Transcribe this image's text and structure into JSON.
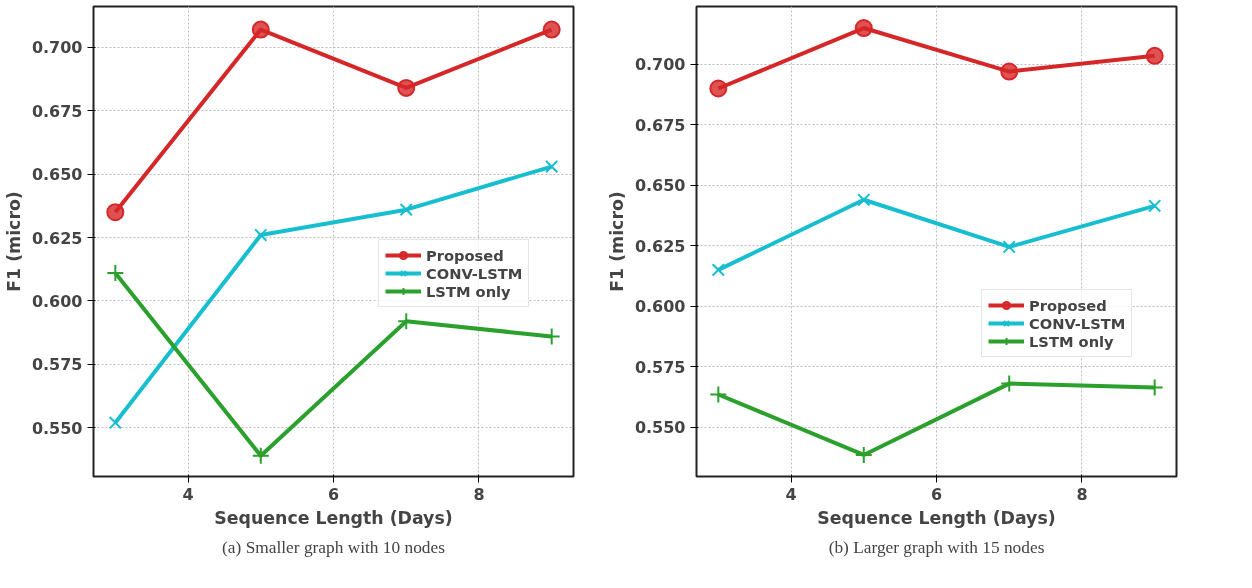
{
  "chart_data": [
    {
      "type": "line",
      "xlabel": "Sequence Length (Days)",
      "ylabel": "F1 (micro)",
      "x": [
        3,
        5,
        7,
        9
      ],
      "xlim": [
        2.7,
        9.3
      ],
      "ylim": [
        0.5308,
        0.7161
      ],
      "xticks": [
        4,
        6,
        8
      ],
      "yticks": [
        {
          "value": 0.55,
          "label": "0.550"
        },
        {
          "value": 0.575,
          "label": "0.575"
        },
        {
          "value": 0.6,
          "label": "0.600"
        },
        {
          "value": 0.625,
          "label": "0.625"
        },
        {
          "value": 0.65,
          "label": "0.650"
        },
        {
          "value": 0.675,
          "label": "0.675"
        },
        {
          "value": 0.7,
          "label": "0.700"
        }
      ],
      "grid": true,
      "legend": "right",
      "series": [
        {
          "name": "Proposed",
          "color": "#d62728",
          "marker": "circle",
          "values": [
            0.635,
            0.707,
            0.684,
            0.707
          ]
        },
        {
          "name": "CONV-LSTM",
          "color": "#17becf",
          "marker": "x",
          "values": [
            0.552,
            0.626,
            0.636,
            0.653
          ]
        },
        {
          "name": "LSTM only",
          "color": "#2ca02c",
          "marker": "cross",
          "values": [
            0.611,
            0.539,
            0.592,
            0.586
          ]
        }
      ],
      "annotations": [
        "(a) Smaller graph with 10 nodes"
      ]
    },
    {
      "type": "line",
      "xlabel": "Sequence Length (Days)",
      "ylabel": "F1 (micro)",
      "x": [
        3,
        5,
        7,
        9
      ],
      "xlim": [
        2.7,
        9.3
      ],
      "ylim": [
        0.5296,
        0.7239
      ],
      "xticks": [
        4,
        6,
        8
      ],
      "yticks": [
        {
          "value": 0.55,
          "label": "0.550"
        },
        {
          "value": 0.575,
          "label": "0.575"
        },
        {
          "value": 0.6,
          "label": "0.600"
        },
        {
          "value": 0.625,
          "label": "0.625"
        },
        {
          "value": 0.65,
          "label": "0.650"
        },
        {
          "value": 0.675,
          "label": "0.675"
        },
        {
          "value": 0.7,
          "label": "0.700"
        }
      ],
      "grid": true,
      "legend": "right",
      "series": [
        {
          "name": "Proposed",
          "color": "#d62728",
          "marker": "circle",
          "values": [
            0.69,
            0.715,
            0.697,
            0.7035
          ]
        },
        {
          "name": "CONV-LSTM",
          "color": "#17becf",
          "marker": "x",
          "values": [
            0.615,
            0.644,
            0.6245,
            0.6415
          ]
        },
        {
          "name": "LSTM only",
          "color": "#2ca02c",
          "marker": "cross",
          "values": [
            0.5635,
            0.5385,
            0.568,
            0.5664
          ]
        }
      ],
      "annotations": [
        "(b) Larger graph with 15 nodes"
      ]
    }
  ]
}
